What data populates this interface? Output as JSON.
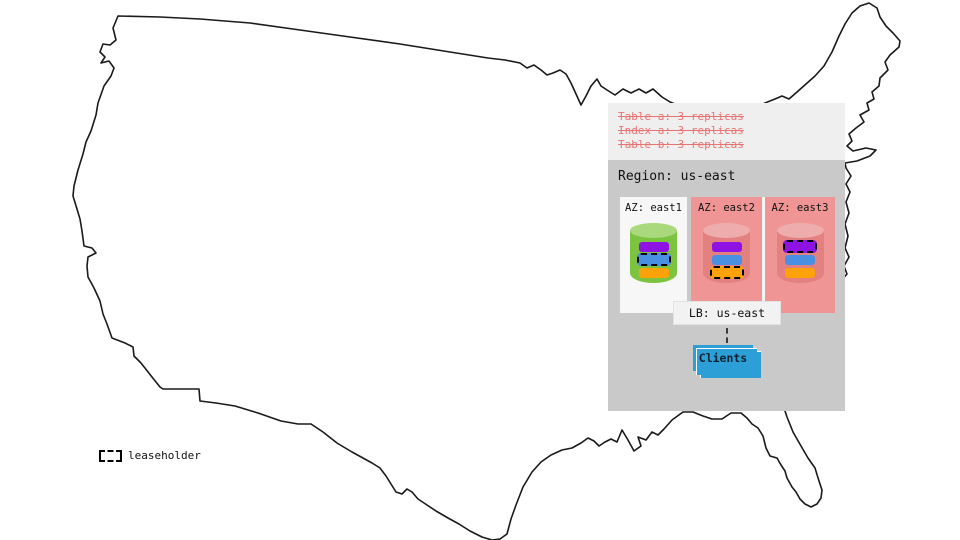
{
  "diagram": {
    "zone_configs": [
      "Table a: 3 replicas",
      "Index a: 3 replicas",
      "Table b: 3 replicas"
    ],
    "region": {
      "title": "Region: us-east",
      "azs": [
        {
          "label": "AZ: east1",
          "cylinder": "green",
          "replicas": [
            {
              "color": "purple",
              "leaseholder": false
            },
            {
              "color": "blue",
              "leaseholder": true
            },
            {
              "color": "orange",
              "leaseholder": false
            }
          ]
        },
        {
          "label": "AZ: east2",
          "cylinder": "pink",
          "replicas": [
            {
              "color": "purple",
              "leaseholder": false
            },
            {
              "color": "blue",
              "leaseholder": false
            },
            {
              "color": "orange",
              "leaseholder": true
            }
          ]
        },
        {
          "label": "AZ: east3",
          "cylinder": "pink",
          "replicas": [
            {
              "color": "purple",
              "leaseholder": true
            },
            {
              "color": "blue",
              "leaseholder": false
            },
            {
              "color": "orange",
              "leaseholder": false
            }
          ]
        }
      ],
      "load_balancer": "LB: us-east",
      "clients": "Clients"
    },
    "legend": {
      "leaseholder_label": "leaseholder"
    }
  },
  "colors": {
    "strikethrough_text": "#E97373",
    "panel_top_bg": "#EFEFEF",
    "panel_region_bg": "#C9C9C9",
    "az_east1_bg": "#F7F7F7",
    "az_pink_bg": "#EF9595",
    "cylinder_green": "#7CC440",
    "cylinder_green_top": "#A9D97C",
    "cylinder_pink": "#E38080",
    "cylinder_pink_top": "#EFACAC",
    "replica": {
      "purple": "#8D12E3",
      "blue": "#4A90E2",
      "orange": "#FFA20A"
    },
    "clients_bg": "#2C9FD6",
    "map_outline": "#1A1A1A"
  }
}
